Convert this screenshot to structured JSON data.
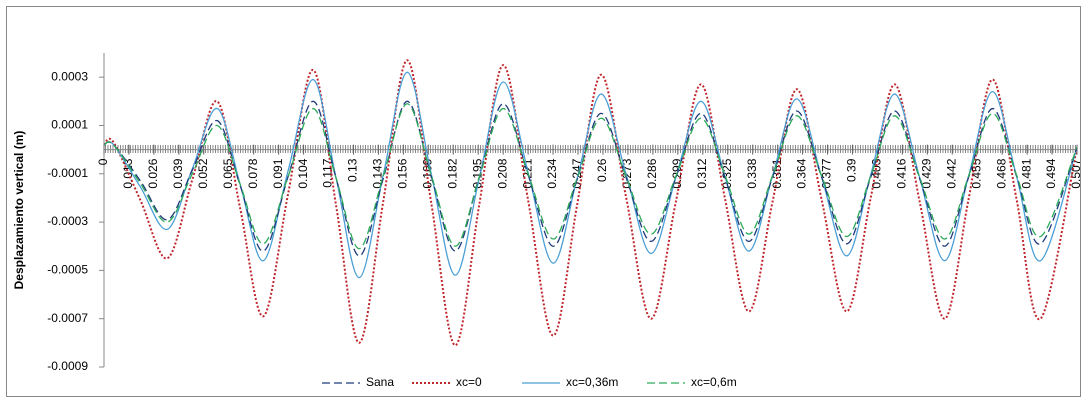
{
  "chart_data": {
    "type": "line",
    "y_label": "Desplazamiento vertical (m)",
    "legend_position": "bottom",
    "grid": false,
    "xlim": [
      0,
      0.507
    ],
    "xticks": [
      0,
      0.013,
      0.026,
      0.039,
      0.052,
      0.065,
      0.078,
      0.091,
      0.104,
      0.117,
      0.13,
      0.143,
      0.156,
      0.169,
      0.182,
      0.195,
      0.208,
      0.221,
      0.234,
      0.247,
      0.26,
      0.273,
      0.286,
      0.299,
      0.312,
      0.325,
      0.338,
      0.351,
      0.364,
      0.377,
      0.39,
      0.403,
      0.416,
      0.429,
      0.442,
      0.455,
      0.468,
      0.481,
      0.494,
      0.507
    ],
    "ylim": [
      -0.0009,
      0.0004
    ],
    "yticks": [
      -0.0009,
      -0.0007,
      -0.0005,
      -0.0003,
      -0.0001,
      0.0001,
      0.0003
    ],
    "x": [
      0,
      0.005,
      0.019,
      0.033,
      0.046,
      0.059,
      0.071,
      0.083,
      0.096,
      0.109,
      0.121,
      0.133,
      0.1455,
      0.158,
      0.1705,
      0.183,
      0.1955,
      0.208,
      0.221,
      0.234,
      0.2465,
      0.259,
      0.272,
      0.285,
      0.298,
      0.311,
      0.3235,
      0.336,
      0.3485,
      0.361,
      0.374,
      0.387,
      0.3995,
      0.412,
      0.425,
      0.438,
      0.4505,
      0.463,
      0.4755,
      0.488,
      0.507
    ],
    "series": [
      {
        "name": "Sana",
        "color": "#1f3a7a",
        "line_style": "dashed",
        "values": [
          2e-05,
          2e-05,
          -0.00013,
          -0.00029,
          -8.5e-05,
          0.00012,
          -0.00015,
          -0.00042,
          -0.00011,
          0.0002,
          -0.00012,
          -0.00044,
          -0.00012,
          0.0002,
          -0.00011,
          -0.00042,
          -0.000115,
          0.00019,
          -0.000105,
          -0.0004,
          -0.000125,
          0.00015,
          -0.000115,
          -0.00038,
          -0.000115,
          0.00015,
          -0.000115,
          -0.00038,
          -0.00011,
          0.00016,
          -0.000115,
          -0.00039,
          -0.000115,
          0.00016,
          -0.00012,
          -0.0004,
          -0.000115,
          0.00017,
          -0.00011,
          -0.00039,
          1e-05
        ]
      },
      {
        "name": "xc=0",
        "color": "#c0262c",
        "line_style": "dotted",
        "values": [
          2e-05,
          3e-05,
          -0.00021,
          -0.00045,
          -0.000125,
          0.0002,
          -0.000245,
          -0.00069,
          -0.00018,
          0.00033,
          -0.000235,
          -0.0008,
          -0.000215,
          0.00037,
          -0.00022,
          -0.00081,
          -0.00023,
          0.00035,
          -0.00021,
          -0.00077,
          -0.00023,
          0.00031,
          -0.000195,
          -0.0007,
          -0.000215,
          0.00027,
          -0.0002,
          -0.00067,
          -0.00021,
          0.00025,
          -0.00021,
          -0.00067,
          -0.0002,
          0.00027,
          -0.000215,
          -0.0007,
          -0.000205,
          0.00029,
          -0.000205,
          -0.0007,
          1e-05
        ]
      },
      {
        "name": "xc=0,36m",
        "color": "#4a9fd6",
        "line_style": "solid",
        "values": [
          2e-05,
          2e-05,
          -0.000155,
          -0.00033,
          -8e-05,
          0.00017,
          -0.000145,
          -0.00046,
          -8.5e-05,
          0.00029,
          -0.00012,
          -0.00053,
          -0.000105,
          0.00032,
          -0.0001,
          -0.00052,
          -0.00012,
          0.00028,
          -9.5e-05,
          -0.00047,
          -0.00012,
          0.00023,
          -0.0001,
          -0.00043,
          -0.000115,
          0.0002,
          -0.00011,
          -0.00042,
          -0.000105,
          0.00021,
          -0.000115,
          -0.00044,
          -0.000105,
          0.00023,
          -0.000115,
          -0.00046,
          -0.00011,
          0.00024,
          -0.00011,
          -0.00046,
          1e-05
        ]
      },
      {
        "name": "xc=0,6m",
        "color": "#2eaa5a",
        "line_style": "dashed",
        "values": [
          2e-05,
          2e-05,
          -0.00014,
          -0.0003,
          -0.0001,
          0.0001,
          -0.000145,
          -0.00039,
          -0.00011,
          0.00017,
          -0.00012,
          -0.00041,
          -0.00011,
          0.00019,
          -0.000105,
          -0.0004,
          -0.000115,
          0.00017,
          -0.0001,
          -0.00037,
          -0.00012,
          0.00013,
          -0.00011,
          -0.00035,
          -0.00011,
          0.00013,
          -0.000105,
          -0.00035,
          -0.000105,
          0.00014,
          -0.00011,
          -0.00036,
          -0.00011,
          0.00014,
          -0.000115,
          -0.00037,
          -0.00011,
          0.00015,
          -0.000105,
          -0.00036,
          1e-05
        ]
      }
    ]
  }
}
